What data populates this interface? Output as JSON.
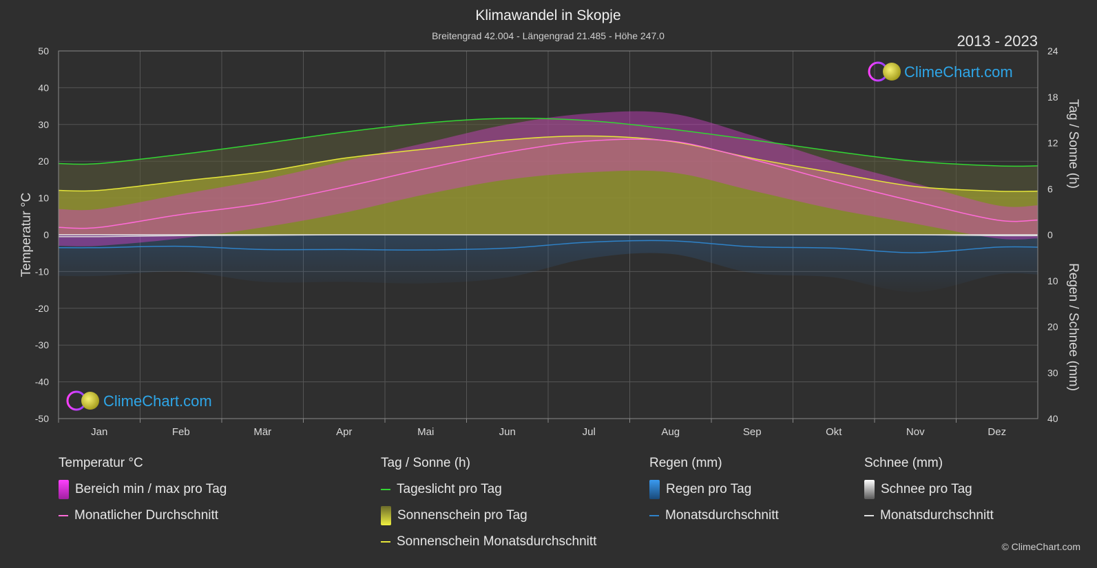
{
  "title": "Klimawandel in Skopje",
  "subtitle": "Breitengrad 42.004 - Längengrad 21.485 - Höhe 247.0",
  "years": "2013 - 2023",
  "logo_text": "ClimeChart.com",
  "copyright": "© ClimeChart.com",
  "colors": {
    "background": "#2f2f2f",
    "daylight": "#33d633",
    "sunshine_avg": "#e6e63a",
    "sunshine_fill": "#9c9c30",
    "temp_avg": "#ff6bd8",
    "temp_range": "#d040c8",
    "rain": "#2f82c8",
    "snow": "#d8d8d8"
  },
  "chart_data": {
    "type": "area",
    "months": [
      "Jan",
      "Feb",
      "Mär",
      "Apr",
      "Mai",
      "Jun",
      "Jul",
      "Aug",
      "Sep",
      "Okt",
      "Nov",
      "Dez"
    ],
    "y_left": {
      "label": "Temperatur °C",
      "range": [
        -50,
        50
      ],
      "ticks": [
        50,
        40,
        30,
        20,
        10,
        0,
        -10,
        -20,
        -30,
        -40,
        -50
      ]
    },
    "y_right_top": {
      "label": "Tag / Sonne (h)",
      "range": [
        0,
        24
      ],
      "ticks": [
        24,
        18,
        12,
        6,
        0
      ]
    },
    "y_right_bottom": {
      "label": "Regen / Schnee (mm)",
      "range": [
        0,
        40
      ],
      "ticks": [
        10,
        20,
        30,
        40
      ]
    },
    "grid": true,
    "series": [
      {
        "name": "Tageslicht pro Tag",
        "unit": "h",
        "values": [
          9.3,
          10.5,
          11.9,
          13.4,
          14.6,
          15.2,
          14.9,
          13.8,
          12.4,
          10.9,
          9.6,
          9.0
        ]
      },
      {
        "name": "Sonnenschein Monatsdurchschnitt",
        "unit": "h",
        "values": [
          5.8,
          7.0,
          8.2,
          10.0,
          11.2,
          12.4,
          12.9,
          12.2,
          10.0,
          8.1,
          6.3,
          5.7
        ]
      },
      {
        "name": "Monatlicher Durchschnitt",
        "unit": "°C",
        "values": [
          2.0,
          5.5,
          8.5,
          13.0,
          18.0,
          22.5,
          25.5,
          25.5,
          20.5,
          14.5,
          9.0,
          4.0
        ]
      },
      {
        "name": "Regen Monatsdurchschnitt",
        "unit": "mm",
        "values": [
          2.8,
          2.5,
          3.2,
          3.2,
          3.3,
          2.9,
          1.6,
          1.3,
          2.6,
          2.9,
          3.9,
          2.7
        ]
      },
      {
        "name": "Schnee Monatsdurchschnitt",
        "unit": "mm",
        "values": [
          0.4,
          0.2,
          0.1,
          0.0,
          0.0,
          0.0,
          0.0,
          0.0,
          0.0,
          0.0,
          0.0,
          0.2
        ]
      },
      {
        "name": "Bereich min / max pro Tag",
        "unit": "°C",
        "min": [
          -3.0,
          -1.0,
          2.0,
          6.0,
          11.0,
          15.0,
          17.0,
          17.0,
          12.0,
          7.0,
          3.0,
          -1.0
        ],
        "max": [
          7.0,
          11.0,
          15.0,
          20.0,
          25.0,
          30.0,
          33.0,
          33.0,
          27.0,
          20.0,
          14.0,
          8.0
        ]
      }
    ]
  },
  "legend": {
    "temperature": {
      "heading": "Temperatur °C",
      "items": [
        "Bereich min / max pro Tag",
        "Monatlicher Durchschnitt"
      ]
    },
    "sun": {
      "heading": "Tag / Sonne (h)",
      "items": [
        "Tageslicht pro Tag",
        "Sonnenschein pro Tag",
        "Sonnenschein Monatsdurchschnitt"
      ]
    },
    "rain": {
      "heading": "Regen (mm)",
      "items": [
        "Regen pro Tag",
        "Monatsdurchschnitt"
      ]
    },
    "snow": {
      "heading": "Schnee (mm)",
      "items": [
        "Schnee pro Tag",
        "Monatsdurchschnitt"
      ]
    }
  }
}
